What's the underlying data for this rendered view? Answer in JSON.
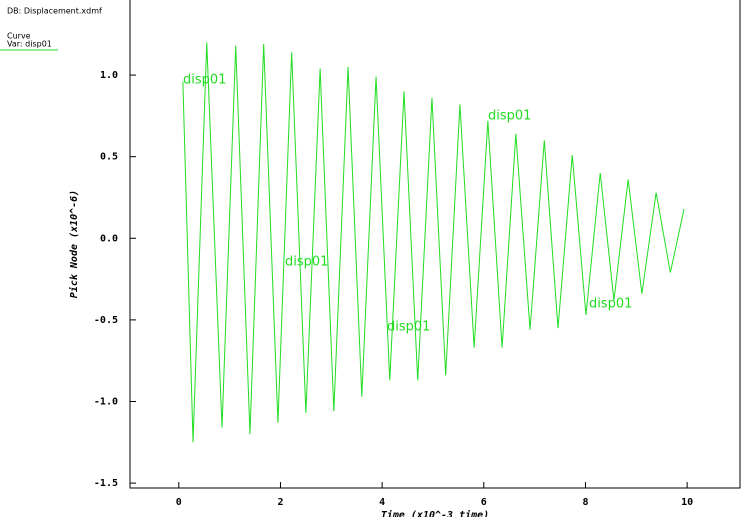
{
  "chart_data": {
    "type": "line",
    "db_label": "DB: Displacement.xdmf",
    "legend_title": "Curve",
    "legend_var": "Var: disp01",
    "y_label": "Pick Node (x10^-6)",
    "x_label": "Time (x10^-3 time)",
    "xlim": [
      -0.96,
      11.04
    ],
    "ylim": [
      -1.53,
      1.46
    ],
    "xticks": [
      0,
      2,
      4,
      6,
      8,
      10
    ],
    "yticks": [
      {
        "value": 1.0,
        "label": "1.0"
      },
      {
        "value": 0.5,
        "label": "0.5"
      },
      {
        "value": 0.0,
        "label": "0.0"
      },
      {
        "value": -0.5,
        "label": "-0.5"
      },
      {
        "value": -1.0,
        "label": "-1.0"
      },
      {
        "value": -1.5,
        "label": "-1.5"
      }
    ],
    "x": [
      0.08,
      0.28,
      0.55,
      0.85,
      1.12,
      1.4,
      1.67,
      1.95,
      2.22,
      2.5,
      2.78,
      3.05,
      3.33,
      3.6,
      3.88,
      4.15,
      4.43,
      4.7,
      4.98,
      5.25,
      5.53,
      5.81,
      6.08,
      6.36,
      6.63,
      6.91,
      7.19,
      7.46,
      7.74,
      8.01,
      8.29,
      8.56,
      8.84,
      9.11,
      9.39,
      9.67,
      9.94
    ],
    "series": [
      {
        "name": "disp01",
        "color": "#22dd22",
        "values": [
          0.96,
          -1.25,
          1.2,
          -1.16,
          1.18,
          -1.2,
          1.19,
          -1.13,
          1.14,
          -1.07,
          1.04,
          -1.06,
          1.05,
          -0.97,
          0.99,
          -0.87,
          0.9,
          -0.87,
          0.86,
          -0.84,
          0.82,
          -0.67,
          0.72,
          -0.67,
          0.64,
          -0.56,
          0.6,
          -0.55,
          0.51,
          -0.47,
          0.4,
          -0.38,
          0.36,
          -0.34,
          0.28,
          -0.21,
          0.18
        ]
      }
    ]
  }
}
